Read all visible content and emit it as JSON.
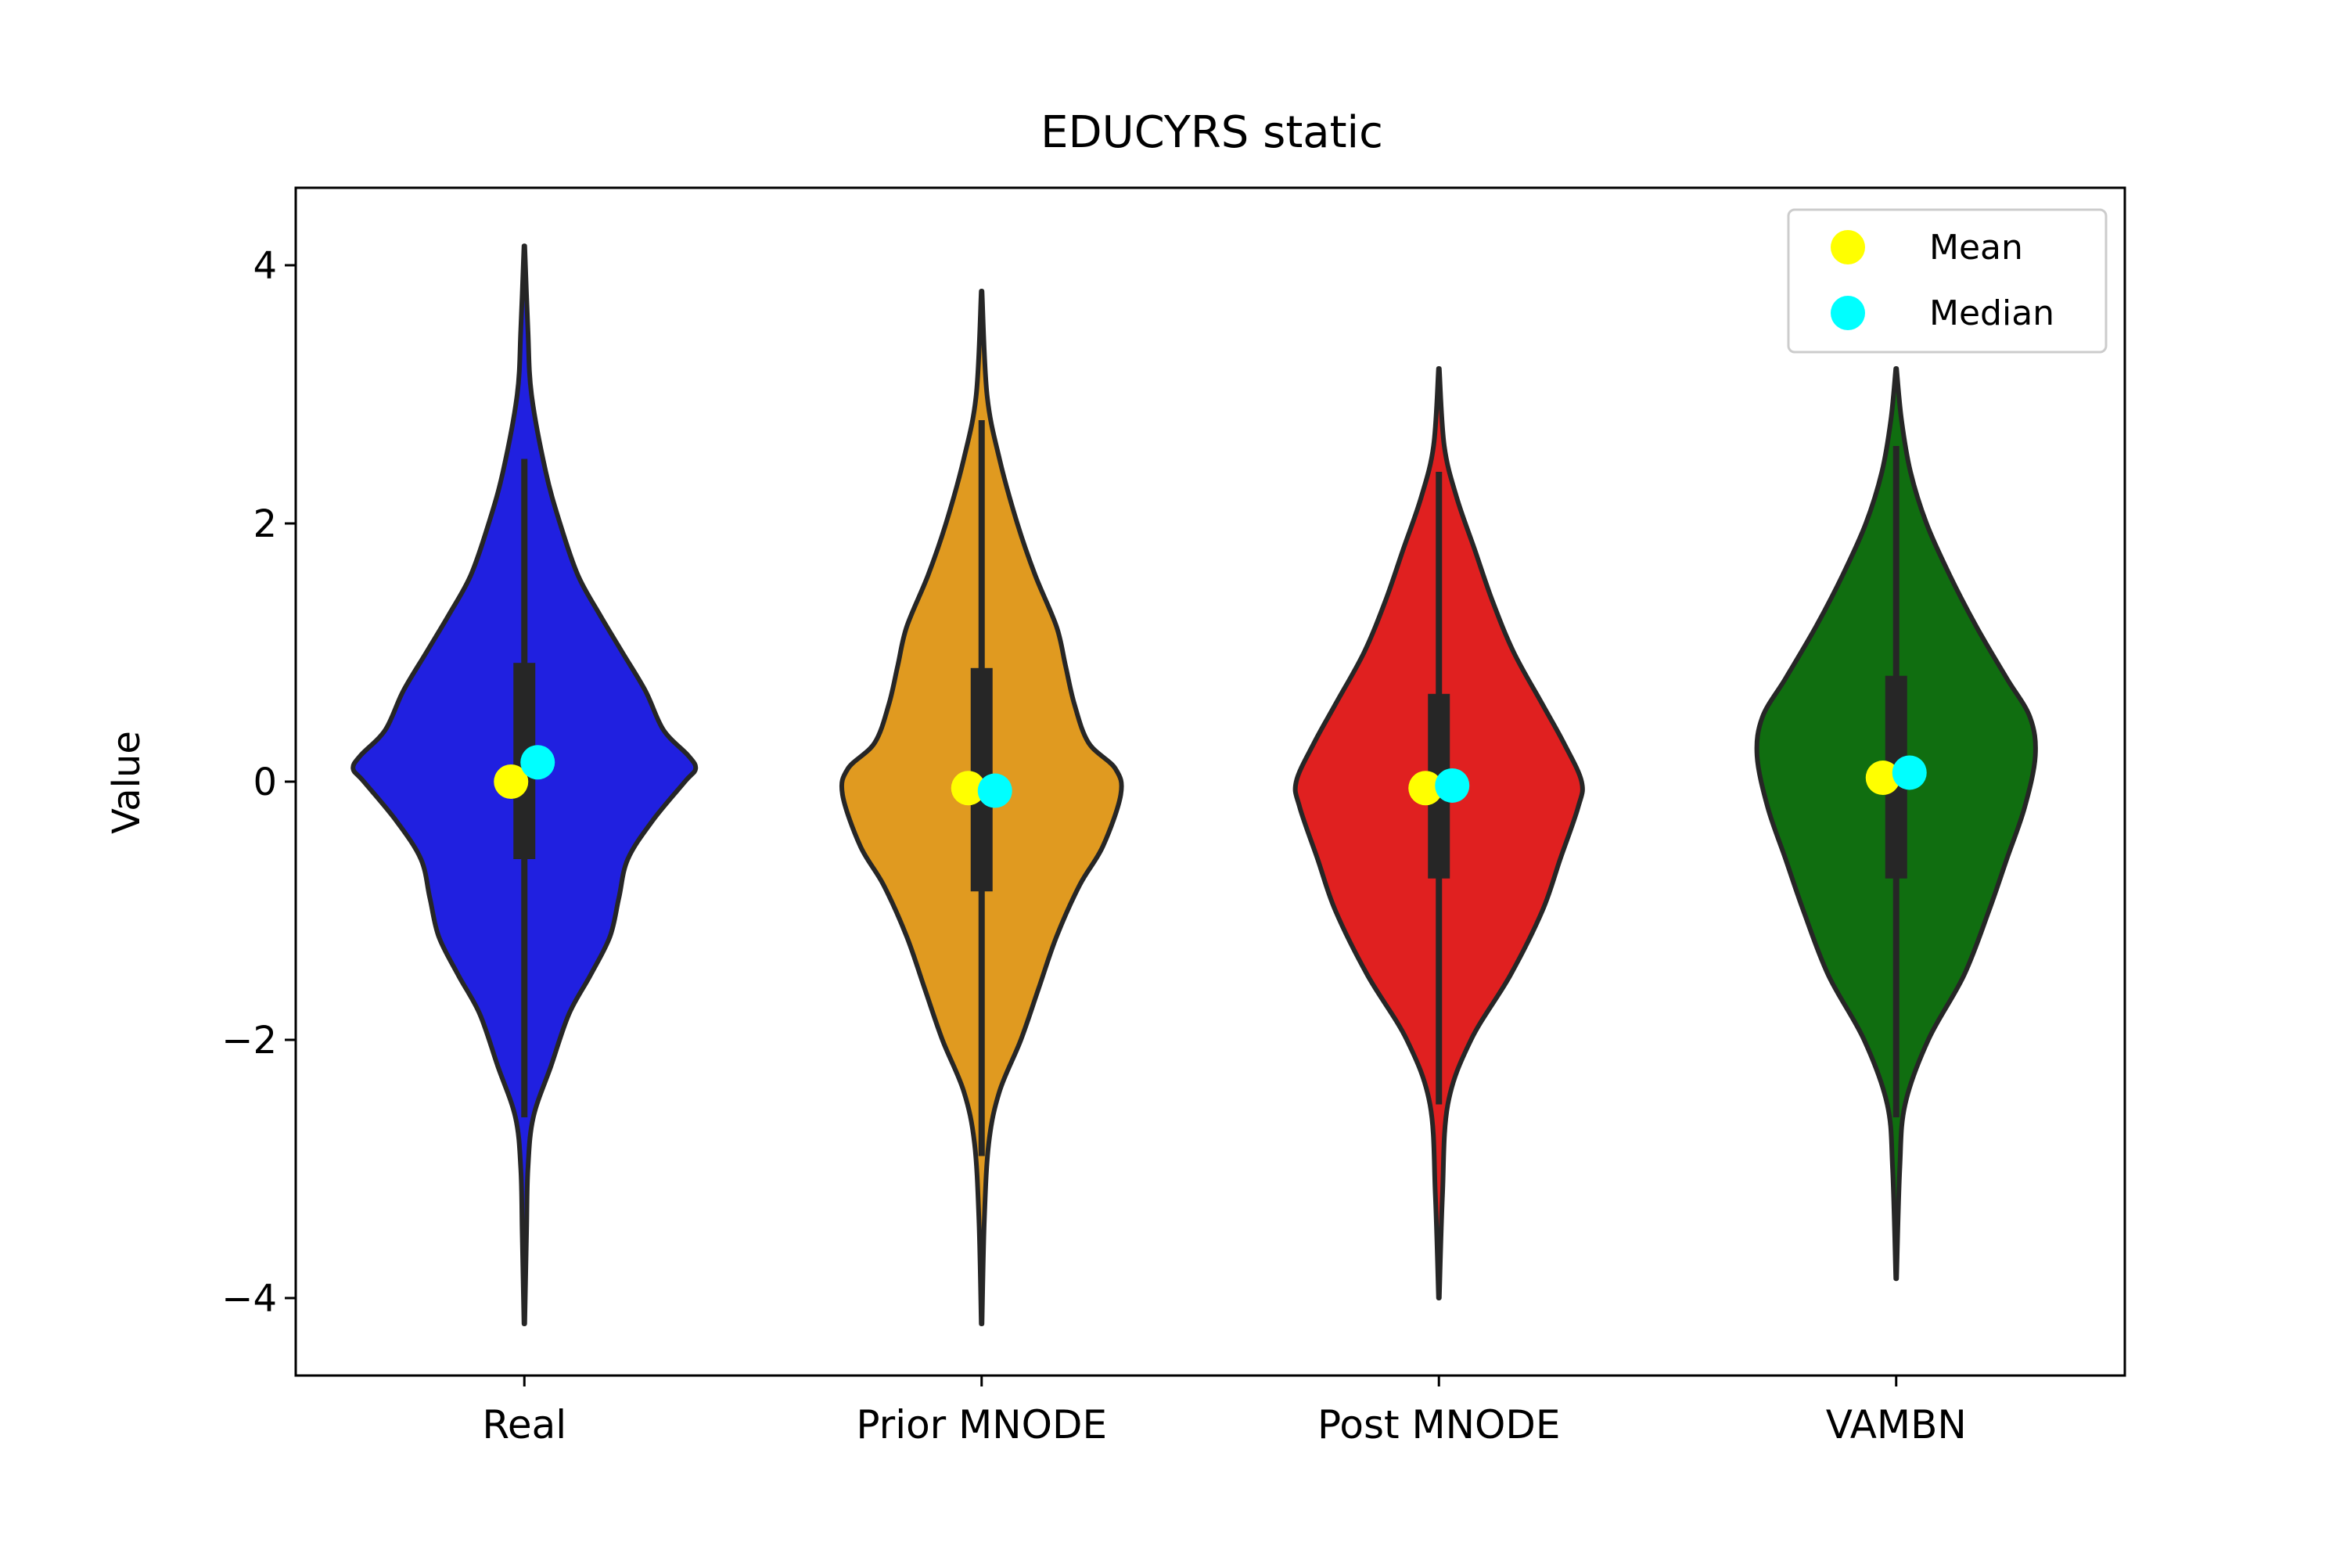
{
  "chart_data": {
    "type": "violin",
    "title": "EDUCYRS static",
    "xlabel": "",
    "ylabel": "Value",
    "ylim": [
      -4.6,
      4.6
    ],
    "yticks": [
      4,
      2,
      0,
      -2,
      -4
    ],
    "ytick_labels": [
      "4",
      "2",
      "0",
      "−2",
      "−4"
    ],
    "categories": [
      "Real",
      "Prior MNODE",
      "Post MNODE",
      "VAMBN"
    ],
    "colors": [
      "#2020e0",
      "#e09a20",
      "#e02020",
      "#106e10"
    ],
    "legend": {
      "placement": "top-right",
      "entries": [
        {
          "label": "Mean",
          "color": "#ffff00"
        },
        {
          "label": "Median",
          "color": "#00ffff"
        }
      ]
    },
    "series": [
      {
        "category": "Real",
        "mean": 0.0,
        "median": 0.15,
        "q1": -0.6,
        "q3": 0.92,
        "whisker_low": -2.6,
        "whisker_high": 2.5,
        "min": -4.2,
        "max": 4.15,
        "density": [
          [
            -4.2,
            0.002
          ],
          [
            -3.5,
            0.012
          ],
          [
            -3.0,
            0.02
          ],
          [
            -2.6,
            0.05
          ],
          [
            -2.2,
            0.15
          ],
          [
            -1.8,
            0.25
          ],
          [
            -1.5,
            0.37
          ],
          [
            -1.2,
            0.48
          ],
          [
            -0.9,
            0.53
          ],
          [
            -0.6,
            0.58
          ],
          [
            -0.3,
            0.72
          ],
          [
            0.0,
            0.9
          ],
          [
            0.1,
            0.96
          ],
          [
            0.2,
            0.92
          ],
          [
            0.4,
            0.78
          ],
          [
            0.7,
            0.68
          ],
          [
            1.0,
            0.55
          ],
          [
            1.3,
            0.42
          ],
          [
            1.6,
            0.3
          ],
          [
            2.0,
            0.2
          ],
          [
            2.4,
            0.12
          ],
          [
            3.0,
            0.04
          ],
          [
            3.5,
            0.02
          ],
          [
            4.15,
            0.002
          ]
        ]
      },
      {
        "category": "Prior MNODE",
        "mean": -0.05,
        "median": -0.07,
        "q1": -0.85,
        "q3": 0.88,
        "whisker_low": -2.9,
        "whisker_high": 2.8,
        "min": -4.2,
        "max": 3.8,
        "density": [
          [
            -4.2,
            0.002
          ],
          [
            -3.4,
            0.015
          ],
          [
            -2.8,
            0.04
          ],
          [
            -2.4,
            0.1
          ],
          [
            -2.0,
            0.22
          ],
          [
            -1.6,
            0.32
          ],
          [
            -1.2,
            0.42
          ],
          [
            -0.8,
            0.55
          ],
          [
            -0.5,
            0.68
          ],
          [
            -0.1,
            0.78
          ],
          [
            0.1,
            0.75
          ],
          [
            0.3,
            0.6
          ],
          [
            0.6,
            0.52
          ],
          [
            0.9,
            0.47
          ],
          [
            1.2,
            0.42
          ],
          [
            1.6,
            0.3
          ],
          [
            2.0,
            0.2
          ],
          [
            2.5,
            0.1
          ],
          [
            3.0,
            0.03
          ],
          [
            3.8,
            0.002
          ]
        ]
      },
      {
        "category": "Post MNODE",
        "mean": -0.05,
        "median": -0.03,
        "q1": -0.75,
        "q3": 0.68,
        "whisker_low": -2.5,
        "whisker_high": 2.4,
        "min": -4.0,
        "max": 3.2,
        "density": [
          [
            -4.0,
            0.002
          ],
          [
            -3.2,
            0.02
          ],
          [
            -2.5,
            0.05
          ],
          [
            -2.0,
            0.18
          ],
          [
            -1.5,
            0.4
          ],
          [
            -1.0,
            0.58
          ],
          [
            -0.6,
            0.68
          ],
          [
            -0.2,
            0.78
          ],
          [
            0.0,
            0.8
          ],
          [
            0.3,
            0.7
          ],
          [
            0.6,
            0.58
          ],
          [
            1.0,
            0.42
          ],
          [
            1.4,
            0.3
          ],
          [
            1.8,
            0.2
          ],
          [
            2.2,
            0.1
          ],
          [
            2.6,
            0.03
          ],
          [
            3.2,
            0.002
          ]
        ]
      },
      {
        "category": "VAMBN",
        "mean": 0.03,
        "median": 0.07,
        "q1": -0.75,
        "q3": 0.82,
        "whisker_low": -2.6,
        "whisker_high": 2.6,
        "min": -3.85,
        "max": 3.2,
        "density": [
          [
            -3.85,
            0.002
          ],
          [
            -3.0,
            0.02
          ],
          [
            -2.5,
            0.05
          ],
          [
            -2.0,
            0.18
          ],
          [
            -1.5,
            0.38
          ],
          [
            -1.0,
            0.52
          ],
          [
            -0.6,
            0.62
          ],
          [
            -0.2,
            0.72
          ],
          [
            0.2,
            0.78
          ],
          [
            0.5,
            0.75
          ],
          [
            0.8,
            0.62
          ],
          [
            1.2,
            0.45
          ],
          [
            1.6,
            0.3
          ],
          [
            2.0,
            0.17
          ],
          [
            2.4,
            0.08
          ],
          [
            2.8,
            0.03
          ],
          [
            3.2,
            0.002
          ]
        ]
      }
    ]
  }
}
